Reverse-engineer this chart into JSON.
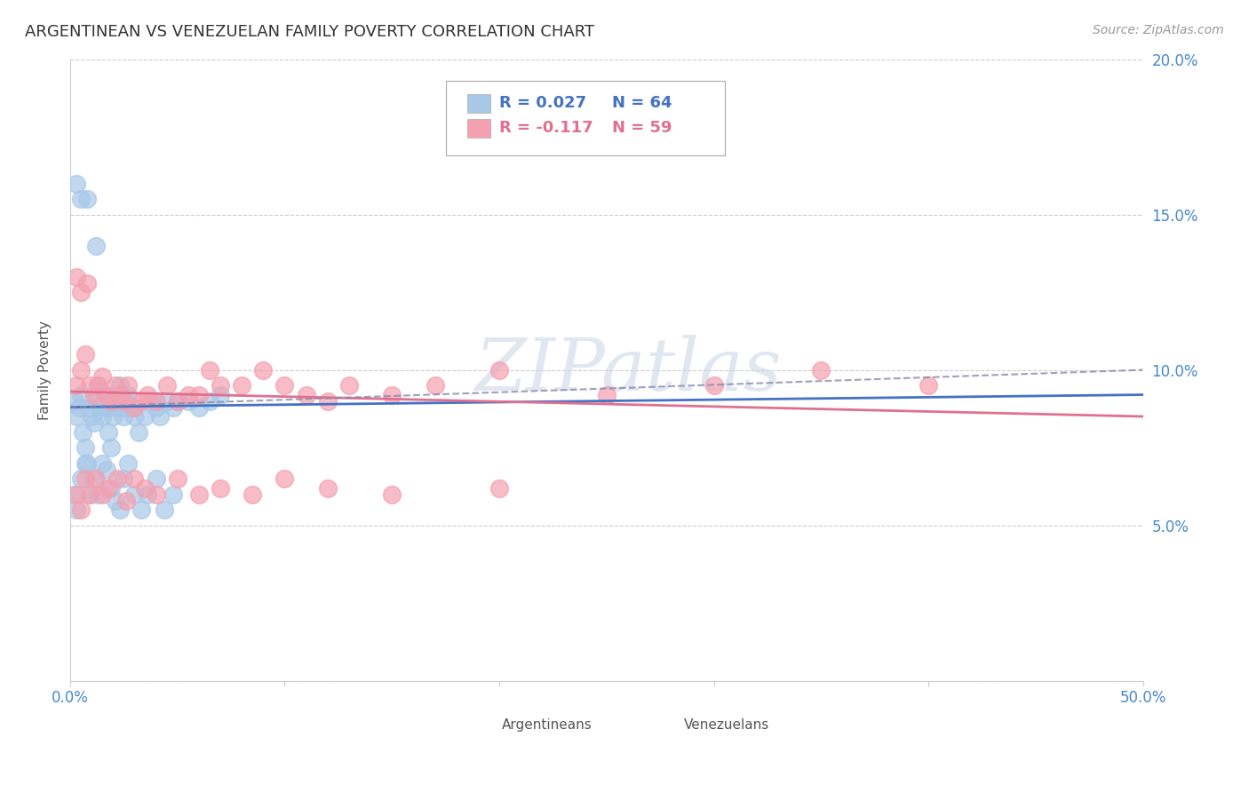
{
  "title": "ARGENTINEAN VS VENEZUELAN FAMILY POVERTY CORRELATION CHART",
  "source": "Source: ZipAtlas.com",
  "ylabel": "Family Poverty",
  "xlim": [
    0,
    0.5
  ],
  "ylim": [
    0,
    0.2
  ],
  "xticks": [
    0.0,
    0.1,
    0.2,
    0.3,
    0.4,
    0.5
  ],
  "xticklabels": [
    "0.0%",
    "",
    "",
    "",
    "",
    "50.0%"
  ],
  "yticks": [
    0.0,
    0.05,
    0.1,
    0.15,
    0.2
  ],
  "yticklabels_right": [
    "",
    "5.0%",
    "10.0%",
    "15.0%",
    "20.0%"
  ],
  "legend_r_arg": "R = 0.027",
  "legend_n_arg": "N = 64",
  "legend_r_ven": "R = -0.117",
  "legend_n_ven": "N = 59",
  "color_arg": "#a8c8e8",
  "color_ven": "#f4a0b0",
  "color_arg_line": "#4472c4",
  "color_ven_line": "#e07090",
  "background_color": "#ffffff",
  "arg_x": [
    0.002,
    0.003,
    0.004,
    0.005,
    0.006,
    0.007,
    0.008,
    0.009,
    0.01,
    0.011,
    0.012,
    0.013,
    0.014,
    0.015,
    0.016,
    0.017,
    0.018,
    0.019,
    0.02,
    0.021,
    0.022,
    0.023,
    0.024,
    0.025,
    0.026,
    0.027,
    0.028,
    0.03,
    0.032,
    0.035,
    0.038,
    0.04,
    0.042,
    0.045,
    0.048,
    0.05,
    0.055,
    0.06,
    0.065,
    0.07,
    0.002,
    0.003,
    0.005,
    0.007,
    0.009,
    0.011,
    0.013,
    0.015,
    0.017,
    0.019,
    0.021,
    0.023,
    0.025,
    0.027,
    0.03,
    0.033,
    0.036,
    0.04,
    0.044,
    0.048,
    0.003,
    0.005,
    0.008,
    0.012
  ],
  "arg_y": [
    0.09,
    0.085,
    0.088,
    0.092,
    0.08,
    0.075,
    0.07,
    0.088,
    0.085,
    0.083,
    0.09,
    0.095,
    0.088,
    0.085,
    0.092,
    0.088,
    0.08,
    0.075,
    0.085,
    0.088,
    0.092,
    0.095,
    0.088,
    0.085,
    0.09,
    0.092,
    0.088,
    0.085,
    0.08,
    0.085,
    0.09,
    0.088,
    0.085,
    0.09,
    0.088,
    0.09,
    0.09,
    0.088,
    0.09,
    0.092,
    0.06,
    0.055,
    0.065,
    0.07,
    0.06,
    0.065,
    0.06,
    0.07,
    0.068,
    0.062,
    0.058,
    0.055,
    0.065,
    0.07,
    0.06,
    0.055,
    0.06,
    0.065,
    0.055,
    0.06,
    0.16,
    0.155,
    0.155,
    0.14
  ],
  "ven_x": [
    0.003,
    0.005,
    0.007,
    0.009,
    0.011,
    0.013,
    0.015,
    0.017,
    0.019,
    0.021,
    0.023,
    0.025,
    0.027,
    0.03,
    0.033,
    0.036,
    0.04,
    0.045,
    0.05,
    0.055,
    0.06,
    0.065,
    0.07,
    0.08,
    0.09,
    0.1,
    0.11,
    0.12,
    0.13,
    0.15,
    0.17,
    0.2,
    0.25,
    0.3,
    0.35,
    0.4,
    0.003,
    0.005,
    0.007,
    0.009,
    0.012,
    0.015,
    0.018,
    0.022,
    0.026,
    0.03,
    0.035,
    0.04,
    0.05,
    0.06,
    0.07,
    0.085,
    0.1,
    0.12,
    0.15,
    0.2,
    0.003,
    0.005,
    0.008
  ],
  "ven_y": [
    0.095,
    0.1,
    0.105,
    0.095,
    0.092,
    0.095,
    0.098,
    0.092,
    0.09,
    0.095,
    0.092,
    0.09,
    0.095,
    0.088,
    0.09,
    0.092,
    0.09,
    0.095,
    0.09,
    0.092,
    0.092,
    0.1,
    0.095,
    0.095,
    0.1,
    0.095,
    0.092,
    0.09,
    0.095,
    0.092,
    0.095,
    0.1,
    0.092,
    0.095,
    0.1,
    0.095,
    0.06,
    0.055,
    0.065,
    0.06,
    0.065,
    0.06,
    0.062,
    0.065,
    0.058,
    0.065,
    0.062,
    0.06,
    0.065,
    0.06,
    0.062,
    0.06,
    0.065,
    0.062,
    0.06,
    0.062,
    0.13,
    0.125,
    0.128
  ]
}
